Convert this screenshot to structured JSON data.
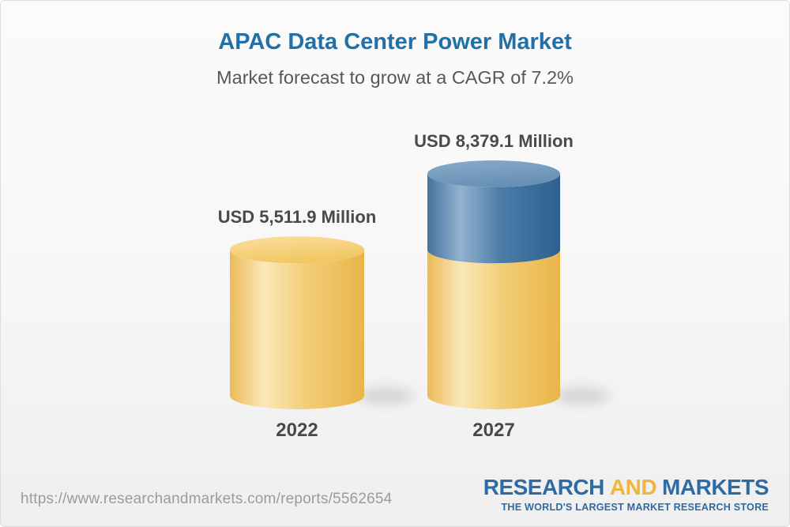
{
  "header": {
    "title": "APAC Data Center Power Market",
    "subtitle": "Market forecast to grow at a CAGR of 7.2%"
  },
  "chart_data": {
    "type": "bar",
    "variant": "3d-cylinder",
    "title": "APAC Data Center Power Market",
    "subtitle": "Market forecast to grow at a CAGR of 7.2%",
    "cagr_percent": 7.2,
    "unit": "USD Million",
    "categories": [
      "2022",
      "2027"
    ],
    "values": [
      5511.9,
      8379.1
    ],
    "ylim": [
      0,
      8379.1
    ],
    "grid": false,
    "legend": "none",
    "bars": [
      {
        "category": "2022",
        "label": "USD 5,511.9 Million",
        "total": 5511.9,
        "segments": [
          {
            "name": "2022 market size",
            "value": 5511.9,
            "color": "gold"
          }
        ]
      },
      {
        "category": "2027",
        "label": "USD 8,379.1 Million",
        "total": 8379.1,
        "segments": [
          {
            "name": "2022 market size",
            "value": 5511.9,
            "color": "gold"
          },
          {
            "name": "growth 2022 to 2027",
            "value": 2867.2,
            "color": "blue"
          }
        ]
      }
    ],
    "colors": {
      "gold": "#f0c466",
      "blue": "#4678a4"
    }
  },
  "footer": {
    "url": "https://www.researchandmarkets.com/reports/5562654",
    "logo": {
      "word1": "RESEARCH",
      "word2": "AND",
      "word3": "MARKETS",
      "tagline": "THE WORLD'S LARGEST MARKET RESEARCH STORE",
      "blue": "#2e6ba5",
      "gold": "#efb63e"
    }
  },
  "theme": {
    "title_color": "#2270a8",
    "subtitle_color": "#57585a",
    "label_color": "#48494b",
    "url_color": "#9b9b9b"
  }
}
